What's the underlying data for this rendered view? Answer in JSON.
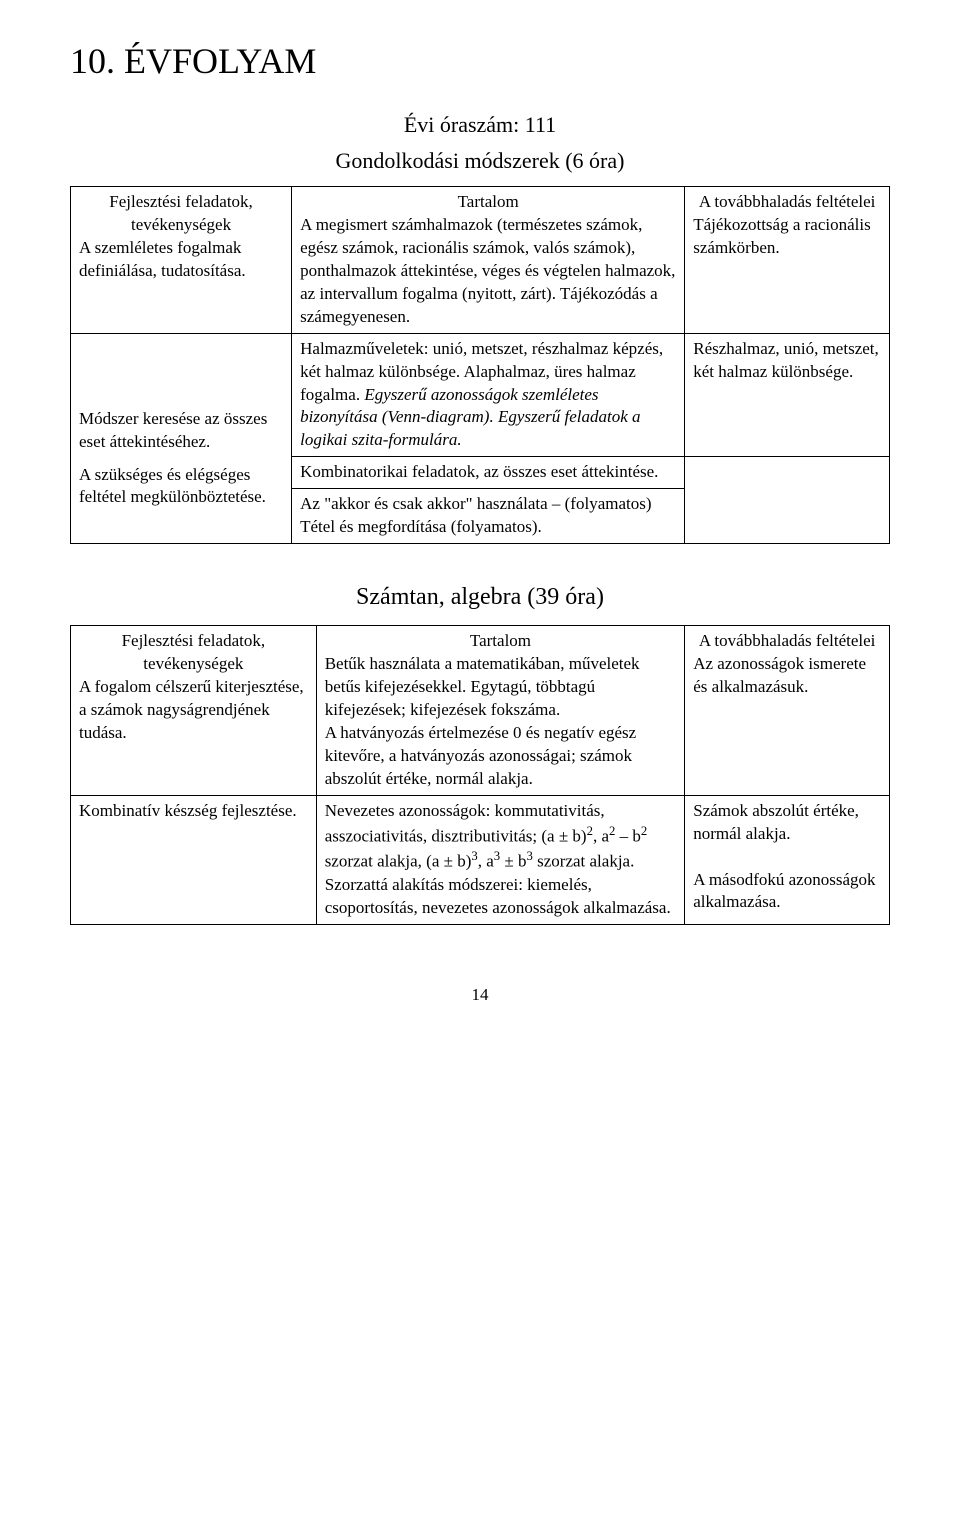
{
  "page": {
    "title": "10. ÉVFOLYAM",
    "subtitle": "Évi óraszám: 111",
    "section1_header": "Gondolkodási módszerek (6 óra)",
    "section2_header": "Számtan, algebra (39 óra)",
    "page_number": "14"
  },
  "table1": {
    "headers": {
      "col1": "Fejlesztési feladatok, tevékenységek",
      "col2": "Tartalom",
      "col3": "A továbbhaladás feltételei"
    },
    "rows": [
      {
        "c1": "A szemléletes fogalmak definiálása, tudatosítása.",
        "c2": "A megismert számhalmazok (természetes számok, egész számok, racionális számok, valós számok), ponthalmazok áttekintése, véges és végtelen halmazok, az intervallum fogalma (nyitott, zárt). Tájékozódás a számegyenesen.",
        "c3": "Tájékozottság a racionális számkörben."
      },
      {
        "c1": "",
        "c2_plain": "Halmazműveletek: unió, metszet, részhalmaz képzés, két halmaz különbsége. Alaphalmaz, üres halmaz fogalma. ",
        "c2_ital": "Egyszerű azonosságok szemléletes bizonyítása (Venn-diagram). Egyszerű feladatok a logikai szita-formulára.",
        "c3": "Részhalmaz, unió, metszet, két halmaz különbsége."
      },
      {
        "c1": "Módszer keresése az összes eset áttekintéséhez.",
        "c2": "Kombinatorikai feladatok, az összes eset áttekintése.",
        "c3": ""
      },
      {
        "c1": "A szükséges és elégséges feltétel megkülönböztetése.",
        "c2": "Az \"akkor és csak akkor\" használata – (folyamatos)\nTétel és megfordítása (folyamatos).",
        "c3": ""
      }
    ]
  },
  "table2": {
    "headers": {
      "col1": "Fejlesztési feladatok, tevékenységek",
      "col2": "Tartalom",
      "col3": "A továbbhaladás feltételei"
    },
    "rows": [
      {
        "c1": "A fogalom célszerű kiterjesztése, a számok nagyságrendjének tudása.",
        "c2": "Betűk használata a matematikában, műveletek betűs kifejezésekkel. Egytagú, többtagú kifejezések; kifejezések fokszáma.\nA hatványozás értelmezése 0 és negatív egész kitevőre, a hatványozás azonosságai; számok abszolút értéke, normál alakja.",
        "c3": "Az azonosságok ismerete és alkalmazásuk."
      },
      {
        "c1": "Kombinatív készség fejlesztése.",
        "c2_html": "Nevezetes azonosságok: kommutativitás, asszociativitás, disztributivitás; (a ± b)<sup>2</sup>, a<sup>2</sup> – b<sup>2</sup> szorzat alakja, (a ± b)<sup>3</sup>, a<sup>3</sup> ± b<sup>3</sup> szorzat alakja. Szorzattá alakítás módszerei: kiemelés, csoportosítás, nevezetes azonosságok alkalmazása.",
        "c3": "Számok abszolút értéke, normál alakja.\n\nA másodfokú azonosságok alkalmazása."
      }
    ]
  }
}
